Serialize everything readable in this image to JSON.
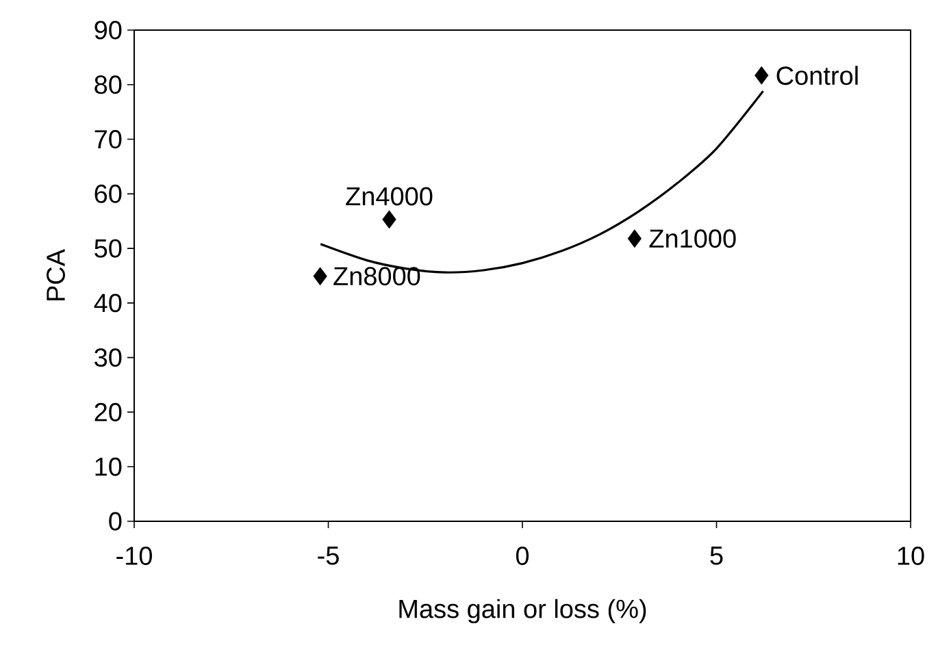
{
  "chart_data": {
    "type": "scatter",
    "xlabel": "Mass gain or loss (%)",
    "ylabel": "PCA",
    "xlim": [
      -10,
      10
    ],
    "xticks": [
      -10,
      -5,
      0,
      5,
      10
    ],
    "ylim": [
      0,
      90
    ],
    "yticks": [
      0,
      10,
      20,
      30,
      40,
      50,
      60,
      70,
      80,
      90
    ],
    "grid": false,
    "marker": "diamond",
    "series": [
      {
        "color": "#000000",
        "x": [
          -5.21,
          -3.43,
          2.89,
          6.16
        ],
        "values": [
          44.9,
          55.3,
          51.8,
          81.7
        ]
      },
      {
        "type": "line",
        "color": "#000000",
        "marker": "none",
        "line_style": "solid",
        "x": [
          -5.2,
          -4,
          -3,
          -2,
          -1,
          0,
          1,
          2,
          3,
          4,
          5,
          6.2
        ],
        "values": [
          50.8,
          47.8,
          46.3,
          45.6,
          46.0,
          47.3,
          49.5,
          52.6,
          56.8,
          62.0,
          68.3,
          78.8
        ]
      }
    ],
    "annotations": [
      {
        "text": "Zn8000",
        "x": -5.21,
        "y": 44.9
      },
      {
        "text": "Zn4000",
        "x": -3.43,
        "y": 55.3
      },
      {
        "text": "Zn1000",
        "x": 2.89,
        "y": 51.8
      },
      {
        "text": "Control",
        "x": 6.16,
        "y": 81.7
      }
    ]
  }
}
